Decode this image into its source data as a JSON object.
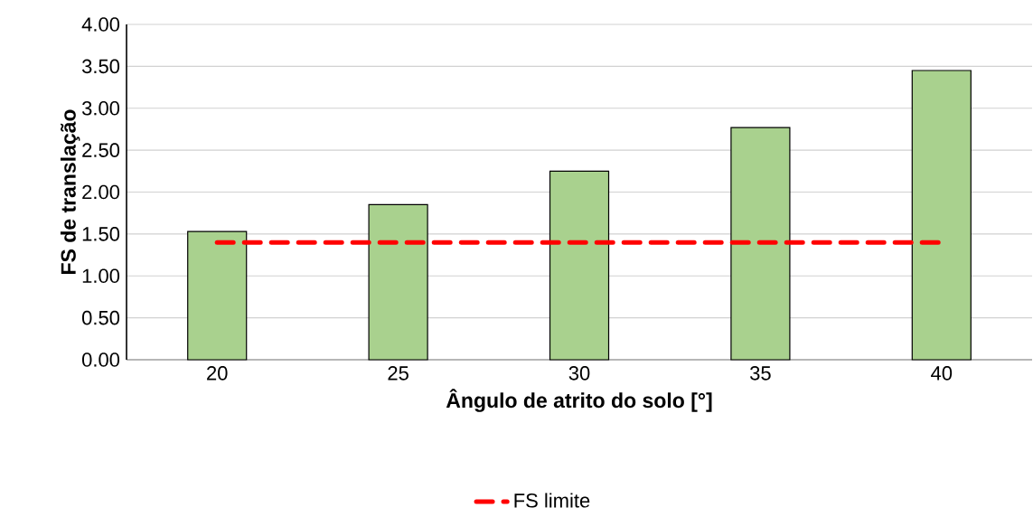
{
  "chart_data": {
    "type": "bar",
    "xlabel": "Ângulo de atrito do solo [°]",
    "ylabel": "FS de translação",
    "categories": [
      "20",
      "25",
      "30",
      "35",
      "40"
    ],
    "series": [
      {
        "color": "#a9d18e",
        "values": [
          1.53,
          1.85,
          2.25,
          2.77,
          3.45
        ]
      },
      {
        "type": "line",
        "name": "FS limite",
        "color": "#ff0000",
        "line_style": "dashed",
        "values": [
          1.4,
          1.4,
          1.4,
          1.4,
          1.4
        ]
      }
    ],
    "ylim": [
      0,
      4
    ],
    "yticks": [
      {
        "value": 0,
        "label": "0.00"
      },
      {
        "value": 0.5,
        "label": "0.50"
      },
      {
        "value": 1,
        "label": "1.00"
      },
      {
        "value": 1.5,
        "label": "1.50"
      },
      {
        "value": 2,
        "label": "2.00"
      },
      {
        "value": 2.5,
        "label": "2.50"
      },
      {
        "value": 3,
        "label": "3.00"
      },
      {
        "value": 3.5,
        "label": "3.50"
      },
      {
        "value": 4,
        "label": "4.00"
      }
    ],
    "grid": "y",
    "legend": "bottom"
  }
}
